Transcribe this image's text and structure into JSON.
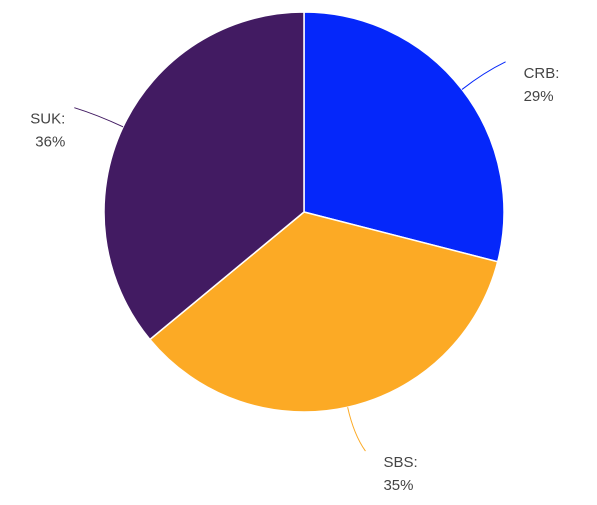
{
  "chart_data": {
    "type": "pie",
    "categories": [
      "CRB:",
      "SBS:",
      "SUK:"
    ],
    "values": [
      29,
      35,
      36
    ],
    "value_labels": [
      "29%",
      "35%",
      "36%"
    ],
    "colors": [
      "#0527fa",
      "#fcaa25",
      "#421b62"
    ]
  }
}
